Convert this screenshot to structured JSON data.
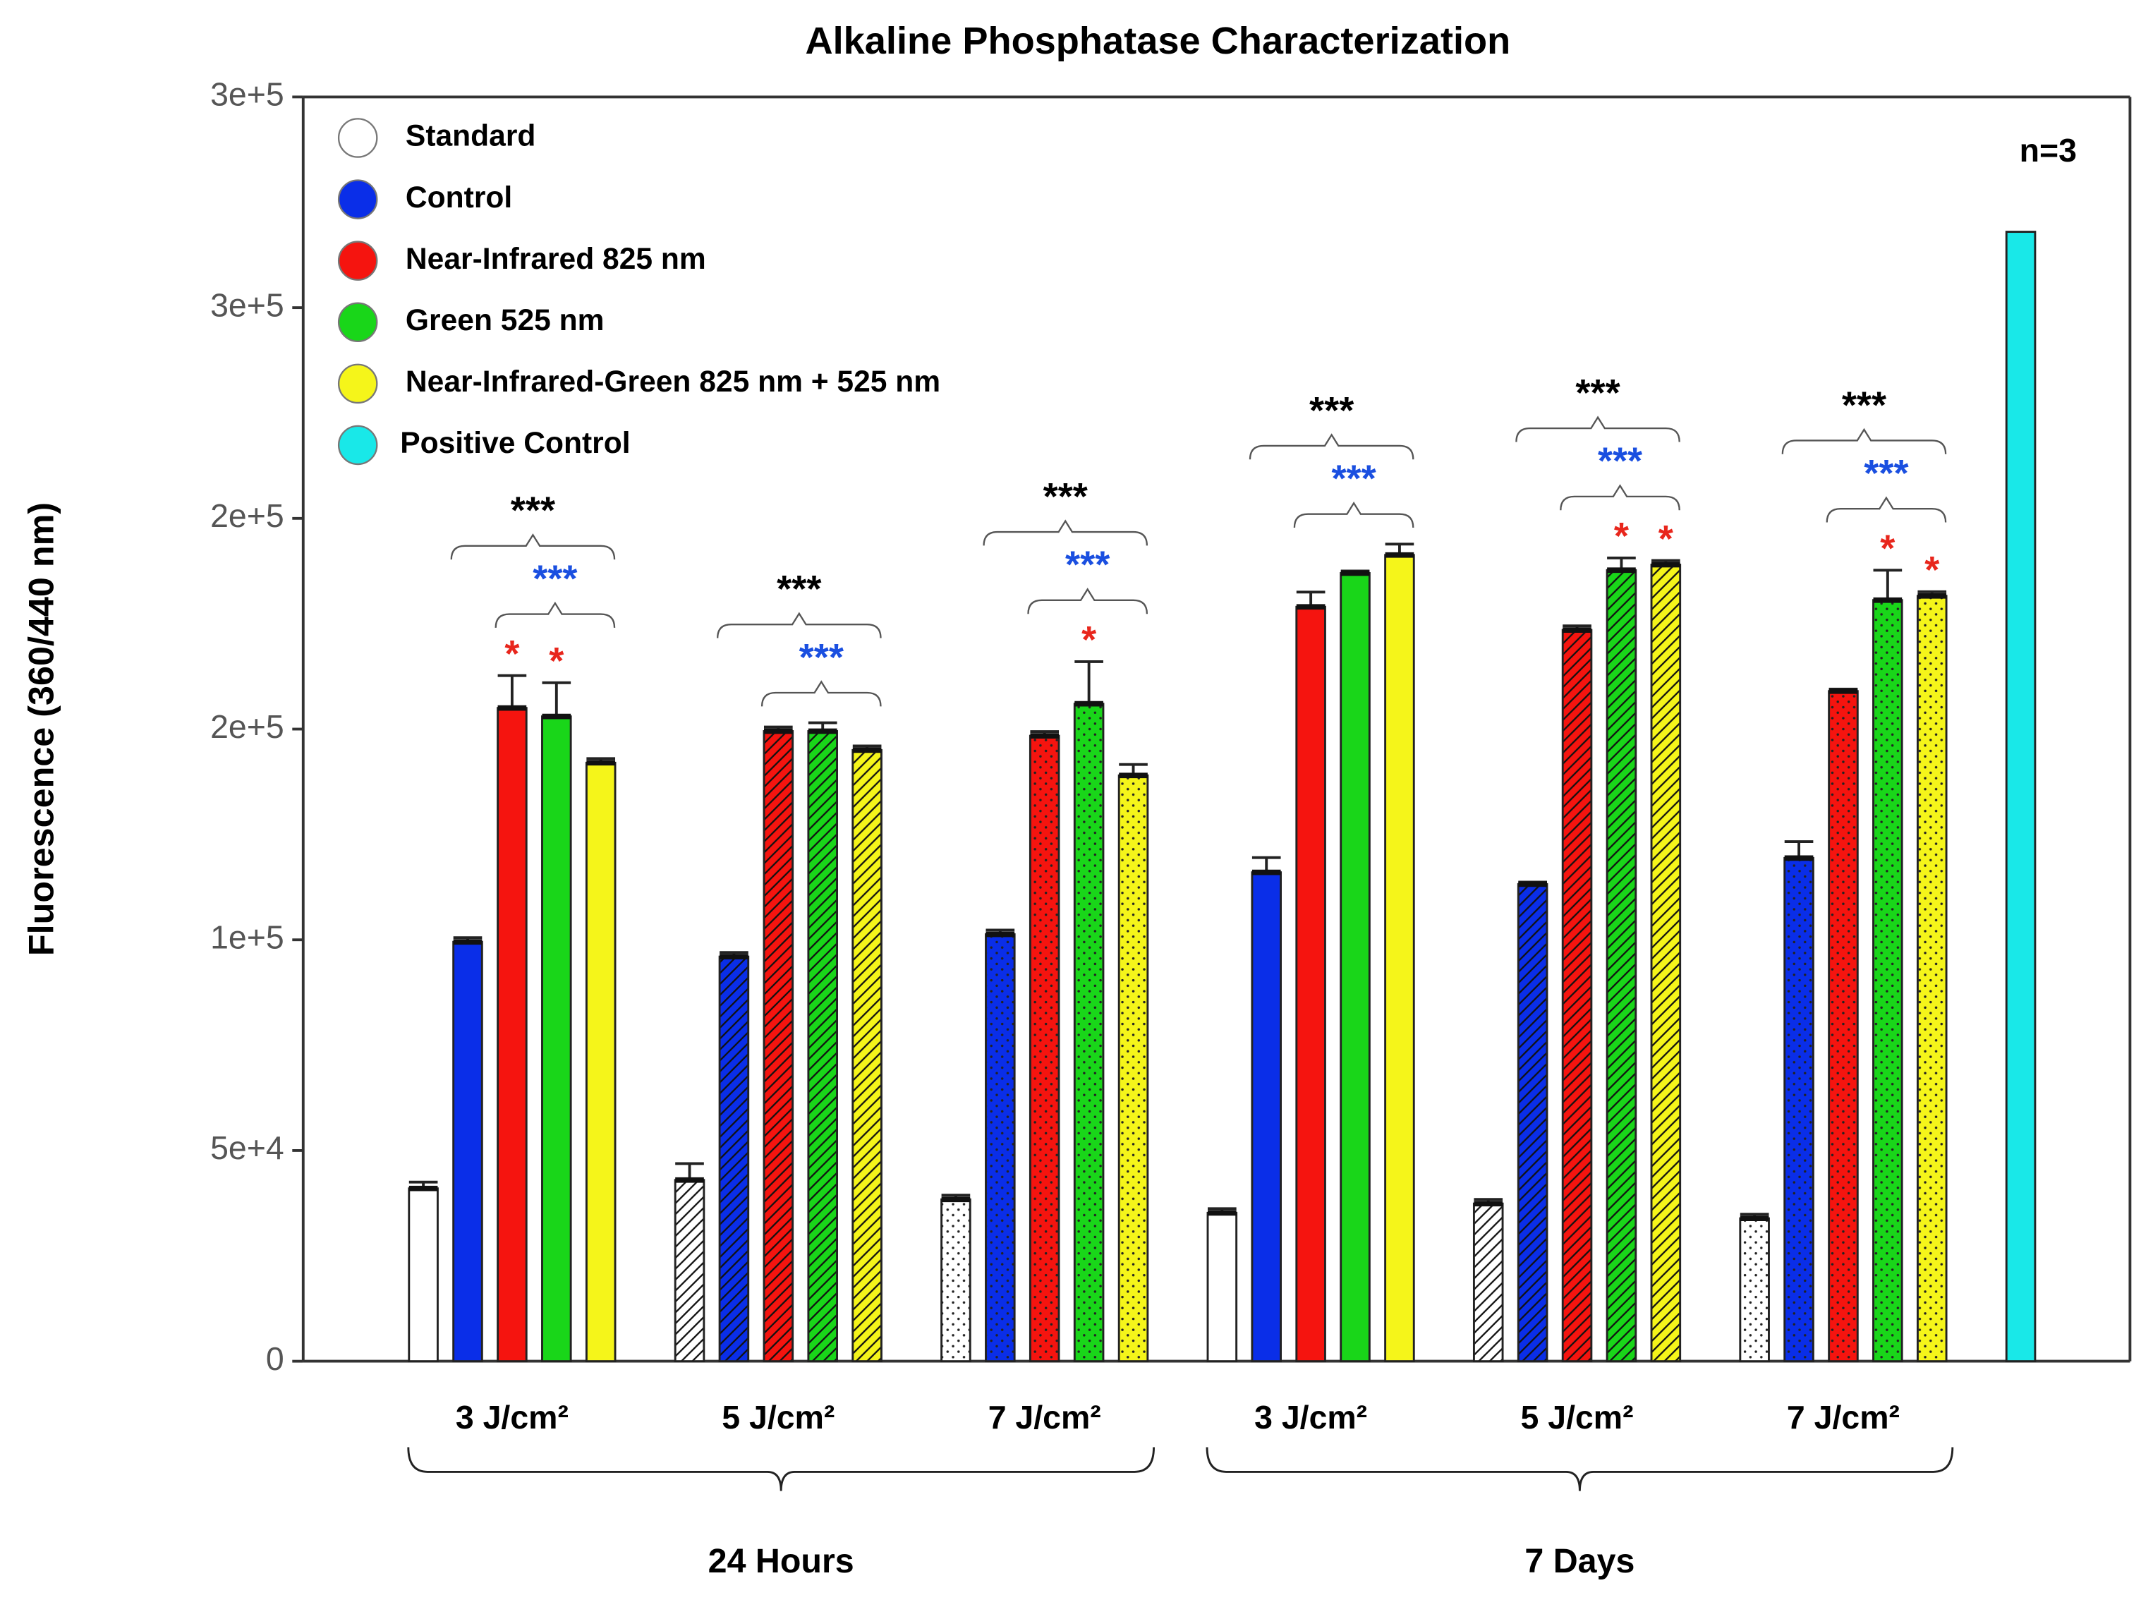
{
  "chart_data": {
    "type": "bar",
    "title": "Alkaline Phosphatase Characterization",
    "ylabel": "Fluorescence (360/440 nm)",
    "annotation": "n=3",
    "categories": [
      "3 J/cm²",
      "5 J/cm²",
      "7 J/cm²",
      "3 J/cm²",
      "5 J/cm²",
      "7 J/cm²",
      null
    ],
    "patterns": [
      "solid",
      "hatch",
      "dot",
      "solid",
      "hatch",
      "dot",
      "solid"
    ],
    "groups": [
      {
        "label": "24 Hours",
        "span": [
          0,
          2
        ]
      },
      {
        "label": "7 Days",
        "span": [
          3,
          5
        ]
      }
    ],
    "ylim": [
      0,
      300000
    ],
    "yticks": [
      0,
      {
        "value": 50000,
        "label": "5e+4"
      },
      {
        "value": 100000,
        "label": "1e+5"
      },
      {
        "value": 150000,
        "label": "2e+5"
      },
      {
        "value": 200000,
        "label": "2e+5"
      },
      {
        "value": 250000,
        "label": "3e+5"
      },
      {
        "value": 300000,
        "label": "3e+5"
      }
    ],
    "series": [
      {
        "name": "Standard",
        "color": "#ffffff",
        "values": [
          41000,
          43000,
          38400,
          35200,
          37400,
          33900,
          null
        ],
        "errors": [
          1500,
          3900,
          1000,
          1000,
          1000,
          1000,
          null
        ]
      },
      {
        "name": "Control",
        "color": "#0a2ee8",
        "values": [
          99500,
          96000,
          101300,
          116000,
          113200,
          119400,
          null
        ],
        "errors": [
          1000,
          1000,
          1000,
          3500,
          500,
          3900,
          null
        ]
      },
      {
        "name": "Near-Infrared 825 nm",
        "color": "#f5140f",
        "values": [
          155000,
          149500,
          148400,
          179000,
          173500,
          159000,
          null
        ],
        "errors": [
          7700,
          1000,
          1000,
          3500,
          1000,
          500,
          null
        ]
      },
      {
        "name": "Green 525 nm",
        "color": "#19d619",
        "values": [
          153000,
          149500,
          156000,
          187000,
          187700,
          180600,
          null
        ],
        "errors": [
          8000,
          2000,
          10000,
          500,
          2900,
          7100,
          null
        ]
      },
      {
        "name": "Near-Infrared-Green 825 nm + 525 nm",
        "color": "#f5f51a",
        "values": [
          142000,
          145000,
          139000,
          191300,
          189000,
          181600,
          null
        ],
        "errors": [
          1000,
          1000,
          2600,
          2600,
          1000,
          1000,
          null
        ]
      },
      {
        "name": "Positive Control",
        "color": "#19e8e8",
        "values": [
          null,
          null,
          null,
          null,
          null,
          null,
          268000
        ],
        "errors": [
          null,
          null,
          null,
          null,
          null,
          null,
          null
        ]
      }
    ],
    "brackets": [
      {
        "text": "***",
        "color": "#000000",
        "from": 1,
        "to": 4
      },
      {
        "text": "***",
        "color": "#1a4fe0",
        "from": 2,
        "to": 4
      }
    ],
    "red_stars": {
      "text": "*",
      "color": "#e8261c",
      "marks": [
        [
          2,
          3
        ],
        [],
        [
          3
        ],
        [],
        [
          3,
          4
        ],
        [
          3,
          4
        ]
      ]
    }
  }
}
